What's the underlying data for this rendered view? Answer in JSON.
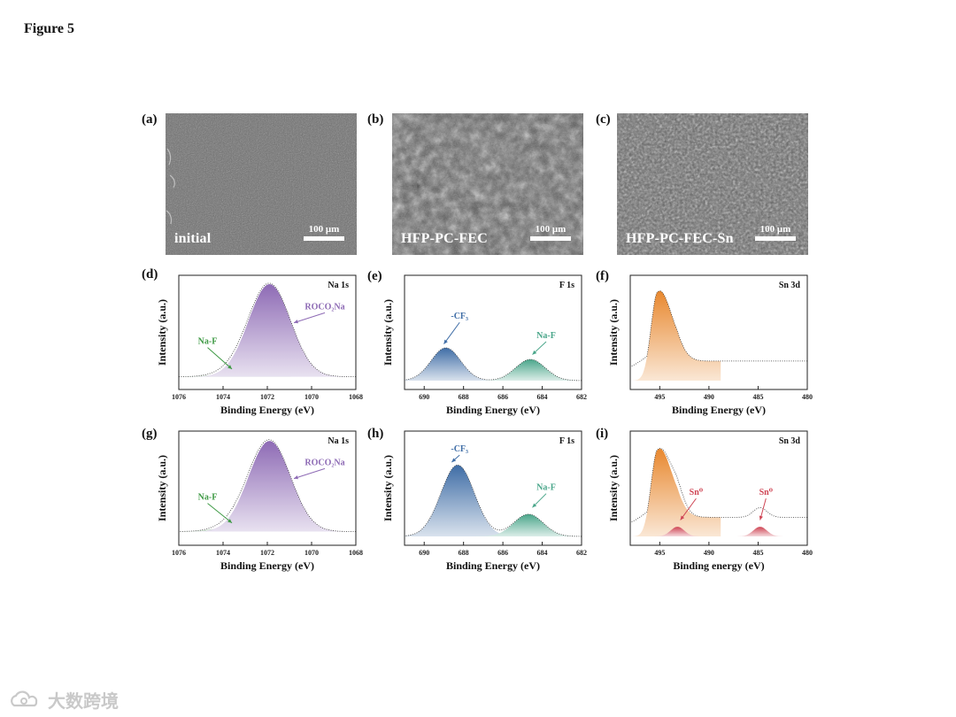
{
  "figure_title": "Figure 5",
  "panel_labels": [
    "(a)",
    "(b)",
    "(c)",
    "(d)",
    "(e)",
    "(f)",
    "(g)",
    "(h)",
    "(i)"
  ],
  "sem_panels": [
    {
      "label": "initial",
      "scale_bar": "100 μm"
    },
    {
      "label": "HFP-PC-FEC",
      "scale_bar": "100 μm"
    },
    {
      "label": "HFP-PC-FEC-Sn",
      "scale_bar": "100 μm"
    }
  ],
  "watermark": {
    "text": "大数跨境",
    "icon": "cloud-logo-icon"
  },
  "colors": {
    "green": "#3f9a45",
    "purple": "#8e6bb5",
    "blue": "#3f6da6",
    "teal": "#4aa68a",
    "orange": "#e8882f",
    "red": "#cf4554"
  },
  "chart_data": [
    {
      "panel": "(d)",
      "type": "area",
      "tag": "Na 1s",
      "xlabel": "Binding Energy (eV)",
      "ylabel": "Intensity (a.u.)",
      "xlim": [
        1076,
        1068
      ],
      "xticks": [
        "1076",
        "1074",
        "1072",
        "1070",
        "1068"
      ],
      "baseline": 0.04,
      "peaks": [
        {
          "name": "Na-F",
          "center": 1073.4,
          "height": 0.04,
          "width": 0.9,
          "color": "#3f9a45"
        },
        {
          "name": "ROCO2Na",
          "center": 1071.9,
          "height": 0.96,
          "width": 0.95,
          "color": "#8e6bb5"
        }
      ],
      "annotations": [
        {
          "text": "Na-F",
          "color": "#3f9a45",
          "x": 1074.7,
          "y": 0.38,
          "ax": 1073.6,
          "ay": 0.12
        },
        {
          "text": "ROCO₂Na",
          "color": "#8e6bb5",
          "x": 1069.4,
          "y": 0.74,
          "ax": 1070.8,
          "ay": 0.6
        }
      ]
    },
    {
      "panel": "(e)",
      "type": "area",
      "tag": "F 1s",
      "xlabel": "Binding Energy (eV)",
      "ylabel": "Intensity (a.u.)",
      "xlim": [
        691,
        682
      ],
      "xticks": [
        "690",
        "688",
        "686",
        "684",
        "682"
      ],
      "baseline": 0.0,
      "peaks": [
        {
          "name": "-CF3",
          "center": 688.9,
          "height": 0.34,
          "width": 0.75,
          "color": "#3f6da6"
        },
        {
          "name": "Na-F",
          "center": 684.6,
          "height": 0.22,
          "width": 0.75,
          "color": "#4aa68a"
        }
      ],
      "annotations": [
        {
          "text": "-CF₃",
          "color": "#3f6da6",
          "x": 688.2,
          "y": 0.64,
          "ax": 689.0,
          "ay": 0.38
        },
        {
          "text": "Na-F",
          "color": "#4aa68a",
          "x": 683.8,
          "y": 0.44,
          "ax": 684.5,
          "ay": 0.27
        }
      ]
    },
    {
      "panel": "(f)",
      "type": "area",
      "tag": "Sn 3d",
      "xlabel": "Binding Energy (eV)",
      "ylabel": "Intensity (a.u.)",
      "xlim": [
        498,
        480
      ],
      "xticks": [
        "495",
        "490",
        "485",
        "480"
      ],
      "baseline": 0.0,
      "peaks": [
        {
          "name": "Sn 3d",
          "center": 495.2,
          "height": 0.92,
          "width": 0.85,
          "color": "#e8882f"
        }
      ],
      "annotations": []
    },
    {
      "panel": "(g)",
      "type": "area",
      "tag": "Na 1s",
      "xlabel": "Binding Energy (eV)",
      "ylabel": "Intensity (a.u.)",
      "xlim": [
        1076,
        1068
      ],
      "xticks": [
        "1076",
        "1074",
        "1072",
        "1070",
        "1068"
      ],
      "baseline": 0.05,
      "peaks": [
        {
          "name": "Na-F",
          "center": 1073.4,
          "height": 0.05,
          "width": 0.9,
          "color": "#3f9a45"
        },
        {
          "name": "ROCO2Na",
          "center": 1071.9,
          "height": 0.94,
          "width": 0.95,
          "color": "#8e6bb5"
        }
      ],
      "annotations": [
        {
          "text": "Na-F",
          "color": "#3f9a45",
          "x": 1074.7,
          "y": 0.38,
          "ax": 1073.6,
          "ay": 0.14
        },
        {
          "text": "ROCO₂Na",
          "color": "#8e6bb5",
          "x": 1069.4,
          "y": 0.74,
          "ax": 1070.8,
          "ay": 0.6
        }
      ]
    },
    {
      "panel": "(h)",
      "type": "area",
      "tag": "F 1s",
      "xlabel": "Binding Energy (eV)",
      "ylabel": "Intensity (a.u.)",
      "xlim": [
        691,
        682
      ],
      "xticks": [
        "690",
        "688",
        "686",
        "684",
        "682"
      ],
      "baseline": 0.0,
      "peaks": [
        {
          "name": "-CF3",
          "center": 688.3,
          "height": 0.74,
          "width": 0.85,
          "color": "#3f6da6"
        },
        {
          "name": "Na-F",
          "center": 684.7,
          "height": 0.23,
          "width": 0.75,
          "color": "#4aa68a"
        }
      ],
      "annotations": [
        {
          "text": "-CF₃",
          "color": "#3f6da6",
          "x": 688.2,
          "y": 0.88,
          "ax": 688.6,
          "ay": 0.77
        },
        {
          "text": "Na-F",
          "color": "#4aa68a",
          "x": 683.8,
          "y": 0.48,
          "ax": 684.5,
          "ay": 0.3
        }
      ]
    },
    {
      "panel": "(i)",
      "type": "area",
      "tag": "Sn 3d",
      "xlabel": "Binding energy (eV)",
      "ylabel": "Intensity (a.u.)",
      "xlim": [
        498,
        480
      ],
      "xticks": [
        "495",
        "490",
        "485",
        "480"
      ],
      "baseline": 0.0,
      "peaks": [
        {
          "name": "Sn 3d",
          "center": 495.2,
          "height": 0.9,
          "width": 0.85,
          "color": "#e8882f"
        },
        {
          "name": "Sn0",
          "center": 493.2,
          "height": 0.1,
          "width": 0.7,
          "color": "#cf4554"
        },
        {
          "name": "Sn0",
          "center": 484.8,
          "height": 0.1,
          "width": 0.7,
          "color": "#cf4554"
        }
      ],
      "annotations": [
        {
          "text": "Sn⁰",
          "color": "#cf4554",
          "x": 491.3,
          "y": 0.43,
          "ax": 492.9,
          "ay": 0.17
        },
        {
          "text": "Sn⁰",
          "color": "#cf4554",
          "x": 484.2,
          "y": 0.43,
          "ax": 484.8,
          "ay": 0.17
        }
      ]
    }
  ]
}
